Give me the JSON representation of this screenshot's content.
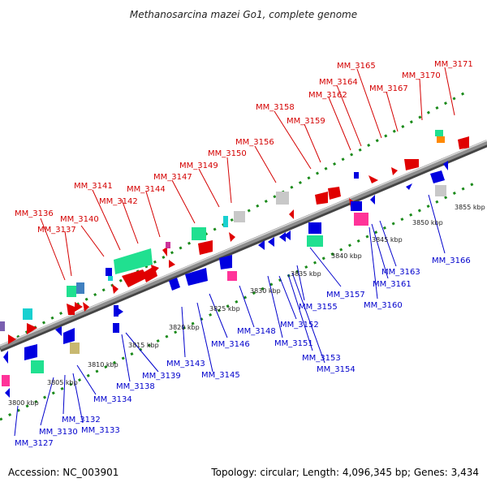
{
  "title": "Methanosarcina mazei Go1, complete genome",
  "footer": {
    "accession": "Accession: NC_003901",
    "summary": "Topology: circular; Length: 4,096,345 bp; Genes: 3,434"
  },
  "colors": {
    "backbone": "#8c8c8c",
    "ticks": "#1a8a1a",
    "label_top": "#d40000",
    "label_bottom": "#0000cc"
  },
  "scale_labels": [
    "3800 kbp",
    "3805 kbp",
    "3810 kbp",
    "3815 kbp",
    "3820 kbp",
    "3825 kbp",
    "3830 kbp",
    "3835 kbp",
    "3840 kbp",
    "3845 kbp",
    "3850 kbp",
    "3855 kbp"
  ],
  "top_labels": [
    "MM_3136",
    "MM_3137",
    "MM_3140",
    "MM_3141",
    "MM_3142",
    "MM_3144",
    "MM_3147",
    "MM_3149",
    "MM_3150",
    "MM_3156",
    "MM_3158",
    "MM_3159",
    "MM_3162",
    "MM_3164",
    "MM_3165",
    "MM_3167",
    "MM_3170",
    "MM_3171"
  ],
  "bottom_labels": [
    "MM_3127",
    "MM_3130",
    "MM_3132",
    "MM_3133",
    "MM_3134",
    "MM_3138",
    "MM_3139",
    "MM_3143",
    "MM_3145",
    "MM_3146",
    "MM_3148",
    "MM_3151",
    "MM_3152",
    "MM_3153",
    "MM_3154",
    "MM_3155",
    "MM_3157",
    "MM_3160",
    "MM_3161",
    "MM_3163",
    "MM_3166"
  ]
}
